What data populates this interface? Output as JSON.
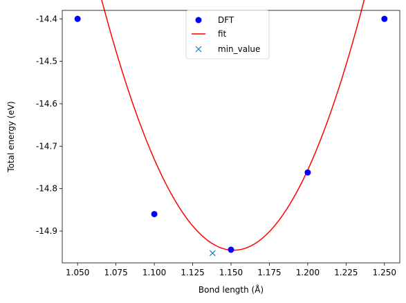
{
  "chart_data": {
    "type": "scatter",
    "xlabel": "Bond length (Å)",
    "ylabel": "Total energy (eV)",
    "xlim": [
      1.04,
      1.26
    ],
    "ylim": [
      -14.975,
      -14.38
    ],
    "xticks": [
      "1.050",
      "1.075",
      "1.100",
      "1.125",
      "1.150",
      "1.175",
      "1.200",
      "1.225",
      "1.250"
    ],
    "yticks": [
      "-14.4",
      "-14.5",
      "-14.6",
      "-14.7",
      "-14.8",
      "-14.9"
    ],
    "grid": false,
    "legend": {
      "placement": "top-center",
      "entries": [
        "DFT",
        "fit",
        "min_value"
      ]
    },
    "series": [
      {
        "name": "DFT",
        "kind": "points",
        "color": "#0000ff",
        "x": [
          1.05,
          1.1,
          1.15,
          1.2,
          1.25
        ],
        "y": [
          -14.4,
          -14.86,
          -14.944,
          -14.762,
          -14.4
        ]
      },
      {
        "name": "fit",
        "kind": "cubic-curve",
        "color": "#ff0000",
        "coefficients": {
          "x0": 1.15,
          "c0": -14.9449,
          "c1": -0.27933,
          "c2": 80.54,
          "c3": 10.67
        },
        "x_range": [
          1.05,
          1.25
        ]
      },
      {
        "name": "min_value",
        "kind": "cross",
        "color": "#1f77b4",
        "x": [
          1.138
        ],
        "y": [
          -14.952
        ]
      }
    ]
  }
}
